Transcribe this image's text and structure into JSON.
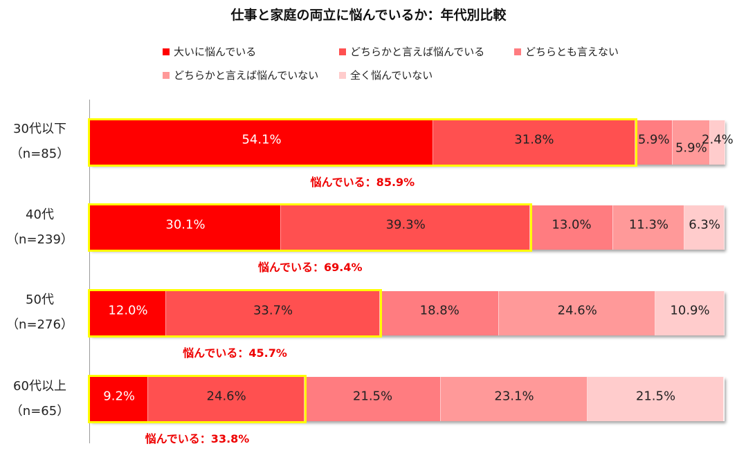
{
  "chart_data": {
    "type": "bar",
    "orientation": "horizontal-stacked-100",
    "title": "仕事と家庭の両立に悩んでいるか：年代別比較",
    "legend_position": "top",
    "categories": [
      {
        "label_line1": "30代以下",
        "label_line2": "（n=85）"
      },
      {
        "label_line1": "40代",
        "label_line2": "（n=239）"
      },
      {
        "label_line1": "50代",
        "label_line2": "（n=276）"
      },
      {
        "label_line1": "60代以上",
        "label_line2": "（n=65）"
      }
    ],
    "series": [
      {
        "name": "大いに悩んでいる",
        "color": "#ff0000",
        "values": [
          54.1,
          30.1,
          12.0,
          9.2
        ],
        "labels": [
          "54.1%",
          "30.1%",
          "12.0%",
          "9.2%"
        ]
      },
      {
        "name": "どちらかと言えば悩んでいる",
        "color": "#ff5050",
        "values": [
          31.8,
          39.3,
          33.7,
          24.6
        ],
        "labels": [
          "31.8%",
          "39.3%",
          "33.7%",
          "24.6%"
        ]
      },
      {
        "name": "どちらとも言えない",
        "color": "#ff7c80",
        "values": [
          5.9,
          13.0,
          18.8,
          21.5
        ],
        "labels": [
          "5.9%",
          "13.0%",
          "18.8%",
          "21.5%"
        ]
      },
      {
        "name": "どちらかと言えば悩んでいない",
        "color": "#ff9999",
        "values": [
          5.9,
          11.3,
          24.6,
          23.1
        ],
        "labels": [
          "5.9%",
          "11.3%",
          "24.6%",
          "23.1%"
        ]
      },
      {
        "name": "全く悩んでいない",
        "color": "#ffcccc",
        "values": [
          2.4,
          6.3,
          10.9,
          21.5
        ],
        "labels": [
          "2.4%",
          "6.3%",
          "10.9%",
          "21.5%"
        ]
      }
    ],
    "summaries": [
      {
        "text": "悩んでいる：85.9%",
        "value": 85.9
      },
      {
        "text": "悩んでいる：69.4%",
        "value": 69.4
      },
      {
        "text": "悩んでいる：45.7%",
        "value": 45.7
      },
      {
        "text": "悩んでいる：33.8%",
        "value": 33.8
      }
    ],
    "highlight_color": "#ffff00",
    "xlim": [
      0,
      100
    ],
    "grid": false
  }
}
